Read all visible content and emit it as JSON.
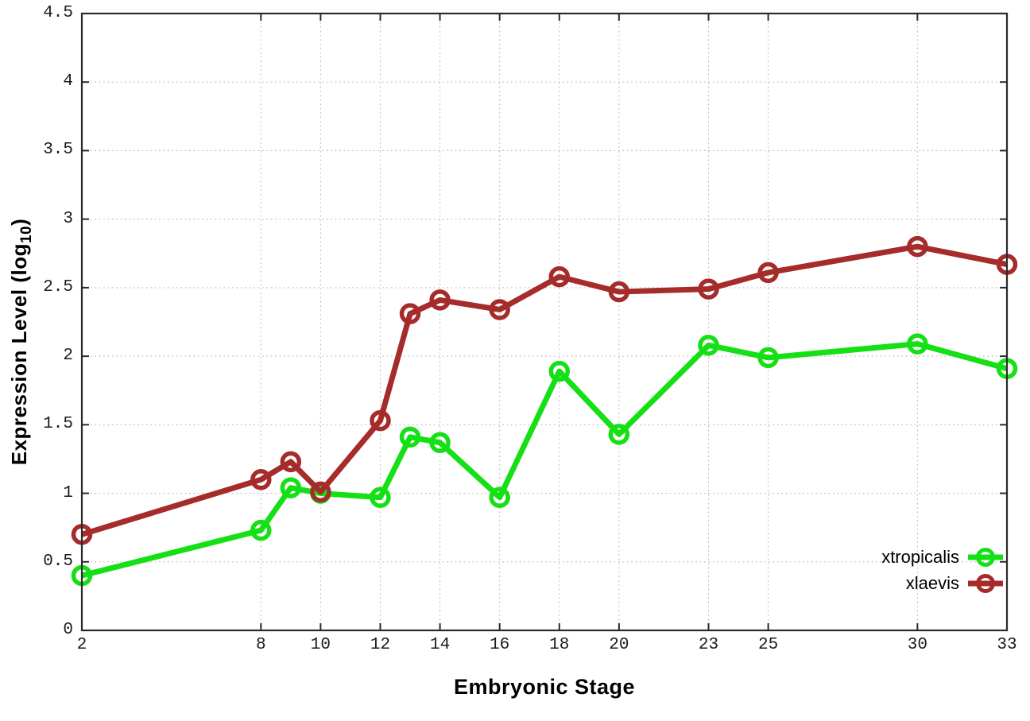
{
  "colors": {
    "background": "#ffffff",
    "plot_border": "#2a2a2a",
    "grid": "#bcbcbc",
    "tick_label": "#1b1b1b",
    "axis_label": "#000000"
  },
  "chart_data": {
    "type": "line",
    "title": "",
    "xlabel": "Embryonic Stage",
    "ylabel": "Expression Level (log10)",
    "ylabel_parts": {
      "pre": "Expression Level (log",
      "sub": "10",
      "post": ")"
    },
    "xlim": [
      2,
      33
    ],
    "ylim": [
      0,
      4.5
    ],
    "xticks": [
      2,
      8,
      10,
      12,
      14,
      16,
      18,
      20,
      23,
      25,
      30,
      33
    ],
    "yticks": [
      0,
      0.5,
      1,
      1.5,
      2,
      2.5,
      3,
      3.5,
      4,
      4.5
    ],
    "grid": true,
    "grid_style": "dotted",
    "legend_position": "inside-bottom-right",
    "marker": "open-circle",
    "x": [
      2,
      8,
      9,
      10,
      12,
      13,
      14,
      16,
      18,
      20,
      23,
      25,
      30,
      33
    ],
    "series": [
      {
        "name": "xtropicalis",
        "color": "#15e015",
        "values": [
          0.4,
          0.73,
          1.04,
          1.0,
          0.97,
          1.41,
          1.37,
          0.97,
          1.89,
          1.43,
          2.08,
          1.99,
          2.09,
          1.91
        ]
      },
      {
        "name": "xlaevis",
        "color": "#a62b2b",
        "values": [
          0.7,
          1.1,
          1.23,
          1.01,
          1.53,
          2.31,
          2.41,
          2.34,
          2.58,
          2.47,
          2.49,
          2.61,
          2.8,
          2.67
        ]
      }
    ]
  }
}
